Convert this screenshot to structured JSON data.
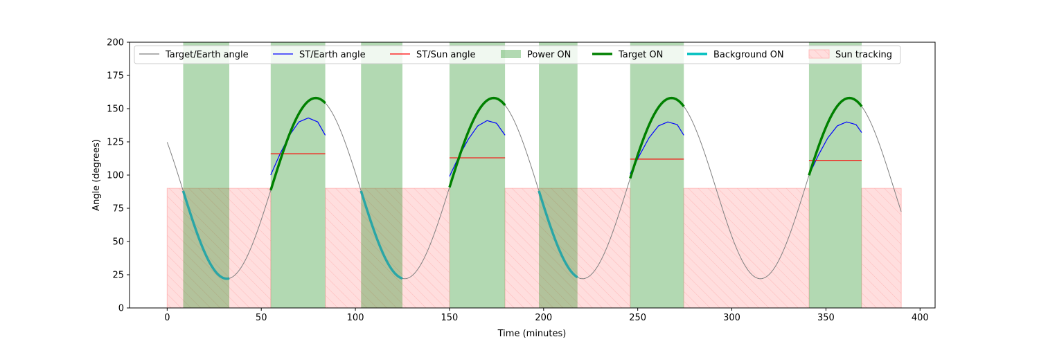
{
  "chart_data": {
    "type": "line",
    "xlabel": "Time (minutes)",
    "ylabel": "Angle (degrees)",
    "xlim": [
      -20,
      408
    ],
    "ylim": [
      0,
      200
    ],
    "xticks": [
      0,
      50,
      100,
      150,
      200,
      250,
      300,
      350,
      400
    ],
    "yticks": [
      0,
      25,
      50,
      75,
      100,
      125,
      150,
      175,
      200
    ],
    "legend_position": "top",
    "legend": [
      {
        "label": "Target/Earth angle",
        "kind": "line",
        "color": "#808080"
      },
      {
        "label": "ST/Earth angle",
        "kind": "line",
        "color": "#0000ff"
      },
      {
        "label": "ST/Sun angle",
        "kind": "line",
        "color": "#ff0000"
      },
      {
        "label": "Power ON",
        "kind": "patch",
        "color": "#008000"
      },
      {
        "label": "Target ON",
        "kind": "thickline",
        "color": "#008000"
      },
      {
        "label": "Background ON",
        "kind": "thickline",
        "color": "#00bfbf"
      },
      {
        "label": "Sun tracking",
        "kind": "hatch",
        "color": "#ff9999"
      }
    ],
    "target_earth_curve": {
      "color": "#808080",
      "period": 94.5,
      "mean": 90,
      "amplitude": 68,
      "min_at": 31.7,
      "x_range": [
        0,
        390
      ]
    },
    "power_on_intervals": [
      [
        8.5,
        33
      ],
      [
        55,
        84
      ],
      [
        103,
        125
      ],
      [
        150,
        179.5
      ],
      [
        197.5,
        218
      ],
      [
        246,
        274.5
      ],
      [
        341,
        369
      ]
    ],
    "sun_tracking_intervals": [
      [
        0,
        55
      ],
      [
        84,
        150
      ],
      [
        179.5,
        246
      ],
      [
        274.5,
        341
      ],
      [
        369,
        390
      ]
    ],
    "sun_tracking_level": 90,
    "target_on_intervals": [
      [
        55,
        84
      ],
      [
        150,
        179.5
      ],
      [
        246,
        274.5
      ],
      [
        341,
        369
      ]
    ],
    "background_on_intervals": [
      [
        8.5,
        33
      ],
      [
        103,
        125
      ],
      [
        197.5,
        218
      ]
    ],
    "st_earth_series": [
      {
        "x": [
          55,
          60,
          65,
          70,
          75,
          80,
          84
        ],
        "y": [
          100,
          116,
          130,
          140,
          143,
          140,
          130
        ]
      },
      {
        "x": [
          150,
          155,
          160,
          165,
          170,
          175,
          179.5
        ],
        "y": [
          99,
          114,
          127,
          137,
          141,
          139,
          130
        ]
      },
      {
        "x": [
          246,
          251,
          256,
          261,
          266,
          271,
          274.5
        ],
        "y": [
          101,
          115,
          128,
          137,
          140,
          138,
          130
        ]
      },
      {
        "x": [
          341,
          346,
          351,
          356,
          361,
          366,
          369
        ],
        "y": [
          100,
          115,
          128,
          137,
          140,
          138,
          132
        ]
      }
    ],
    "st_sun_series": [
      {
        "x": [
          55,
          84
        ],
        "y": [
          116,
          116
        ]
      },
      {
        "x": [
          150,
          179.5
        ],
        "y": [
          113,
          113
        ]
      },
      {
        "x": [
          246,
          274.5
        ],
        "y": [
          112,
          112
        ]
      },
      {
        "x": [
          341,
          369
        ],
        "y": [
          111,
          111
        ]
      }
    ]
  }
}
